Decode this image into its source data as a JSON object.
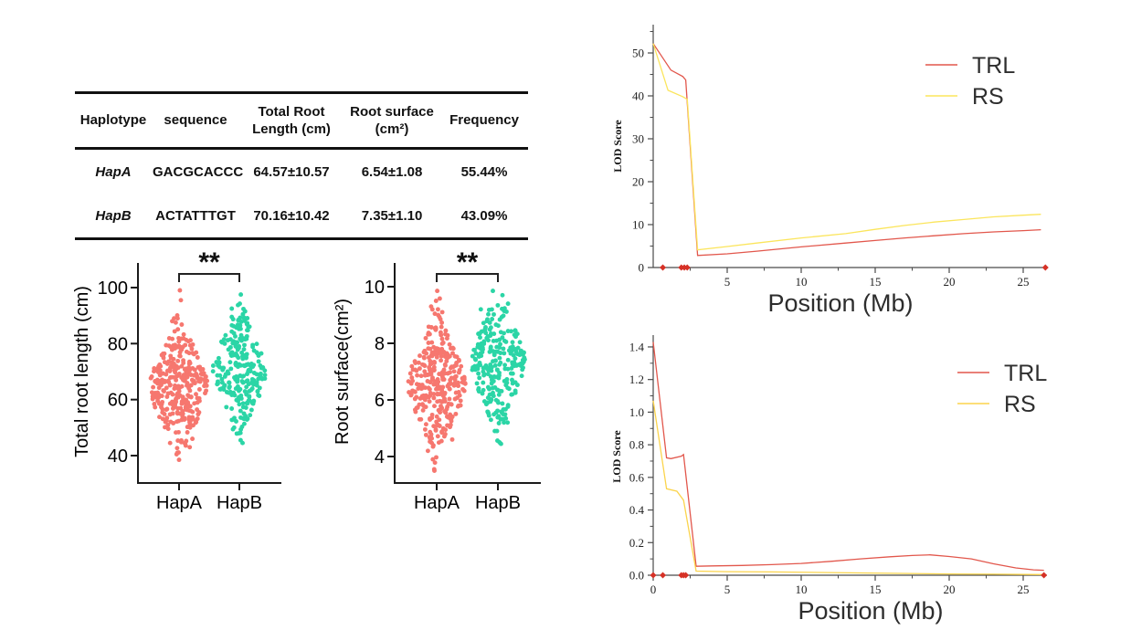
{
  "table": {
    "headers": [
      "Haplotype",
      "sequence",
      "Total Root Length (cm)",
      "Root surface (cm²)",
      "Frequency"
    ],
    "rows": [
      {
        "haplotype": "HapA",
        "sequence": "GACGCACCC",
        "trl": "64.57±10.57",
        "rs": "6.54±1.08",
        "freq": "55.44%"
      },
      {
        "haplotype": "HapB",
        "sequence": "ACTATTTGT",
        "trl": "70.16±10.42",
        "rs": "7.35±1.10",
        "freq": "43.09%"
      }
    ]
  },
  "chart_data": [
    {
      "type": "scatter",
      "subtype": "beeswarm",
      "name": "total-root-length-beeswarm",
      "ylabel": "Total root length (cm)",
      "categories": [
        "HapA",
        "HapB"
      ],
      "yticks": [
        40,
        60,
        80,
        100
      ],
      "ylim": [
        33,
        108
      ],
      "significance": "**",
      "series": [
        {
          "name": "HapA",
          "color": "#F6776F",
          "mean": 64.57,
          "sd": 10.57,
          "n": 320,
          "min": 38,
          "max": 99,
          "extremes": [
            99,
            95.5,
            88,
            87.5,
            38.5,
            40.5,
            43,
            44.5,
            46
          ]
        },
        {
          "name": "HapB",
          "color": "#2BD5A6",
          "mean": 70.16,
          "sd": 10.42,
          "n": 245,
          "min": 44,
          "max": 98,
          "extremes": [
            97.5,
            92.5,
            91.5,
            90.5,
            44.5,
            45.5,
            48,
            50
          ]
        }
      ]
    },
    {
      "type": "scatter",
      "subtype": "beeswarm",
      "name": "root-surface-beeswarm",
      "ylabel": "Root surface(cm²)",
      "categories": [
        "HapA",
        "HapB"
      ],
      "yticks": [
        4,
        6,
        8,
        10
      ],
      "ylim": [
        3.2,
        10.8
      ],
      "significance": "**",
      "series": [
        {
          "name": "HapA",
          "color": "#F6776F",
          "mean": 6.54,
          "sd": 1.08,
          "n": 320,
          "min": 3.5,
          "max": 9.9,
          "extremes": [
            9.85,
            9.5,
            9.3,
            9.1,
            3.5,
            4.2,
            4.35,
            4.6
          ]
        },
        {
          "name": "HapB",
          "color": "#2BD5A6",
          "mean": 7.35,
          "sd": 1.1,
          "n": 245,
          "min": 4.4,
          "max": 9.9,
          "extremes": [
            9.85,
            9.7,
            9.4,
            9.2,
            4.45,
            4.5,
            4.9,
            5.2
          ]
        }
      ]
    },
    {
      "type": "line",
      "name": "lod-chromosome-top",
      "ylabel": "LOD Score",
      "xlabel": "Position (Mb)",
      "xticks": [
        5,
        10,
        15,
        20,
        25
      ],
      "yticks": [
        0,
        10,
        20,
        30,
        40,
        50
      ],
      "ytick_labels": [
        "0",
        "10",
        "20",
        "30",
        "40",
        "50"
      ],
      "xlim": [
        0,
        26.6
      ],
      "ylim": [
        0,
        56
      ],
      "legend": [
        "TRL",
        "RS"
      ],
      "series": [
        {
          "name": "TRL",
          "color": "#E2574C",
          "points": [
            [
              0,
              52.2
            ],
            [
              1.2,
              46
            ],
            [
              2.0,
              44.5
            ],
            [
              2.2,
              43.7
            ],
            [
              3.0,
              2.8
            ],
            [
              5,
              3.2
            ],
            [
              7,
              3.8
            ],
            [
              10,
              4.8
            ],
            [
              13,
              5.7
            ],
            [
              15,
              6.3
            ],
            [
              17,
              6.9
            ],
            [
              19,
              7.4
            ],
            [
              21,
              7.9
            ],
            [
              23,
              8.3
            ],
            [
              25,
              8.6
            ],
            [
              26.2,
              8.8
            ]
          ]
        },
        {
          "name": "RS",
          "color": "#FBE55C",
          "points": [
            [
              0,
              52.2
            ],
            [
              1.0,
              41.3
            ],
            [
              2.0,
              39.8
            ],
            [
              2.3,
              39.2
            ],
            [
              3.0,
              4.1
            ],
            [
              5,
              4.9
            ],
            [
              7,
              5.7
            ],
            [
              10,
              6.9
            ],
            [
              13,
              7.9
            ],
            [
              15,
              8.9
            ],
            [
              17,
              9.8
            ],
            [
              19,
              10.6
            ],
            [
              21,
              11.2
            ],
            [
              23,
              11.8
            ],
            [
              25,
              12.2
            ],
            [
              26.2,
              12.4
            ]
          ]
        }
      ],
      "markers": {
        "color": "#D63126",
        "x": [
          0.65,
          1.9,
          2.1,
          2.3,
          26.5
        ]
      }
    },
    {
      "type": "line",
      "name": "lod-chromosome-bottom",
      "ylabel": "LOD Score",
      "xlabel": "Position (Mb)",
      "xticks": [
        0,
        5,
        10,
        15,
        20,
        25
      ],
      "yticks": [
        0,
        0.2,
        0.4,
        0.6,
        0.8,
        1.0,
        1.2,
        1.4
      ],
      "ytick_labels": [
        "0.0",
        "0.2",
        "0.4",
        "0.6",
        "0.8",
        "1.0",
        "1.2",
        "1.4"
      ],
      "xlim": [
        0,
        26.6
      ],
      "ylim": [
        0,
        1.47
      ],
      "legend": [
        "TRL",
        "RS"
      ],
      "series": [
        {
          "name": "TRL",
          "color": "#E2574C",
          "points": [
            [
              0,
              1.43
            ],
            [
              0.9,
              0.72
            ],
            [
              1.2,
              0.715
            ],
            [
              1.9,
              0.73
            ],
            [
              2.05,
              0.74
            ],
            [
              2.9,
              0.055
            ],
            [
              4,
              0.057
            ],
            [
              6,
              0.06
            ],
            [
              8,
              0.065
            ],
            [
              10,
              0.072
            ],
            [
              12,
              0.085
            ],
            [
              14,
              0.1
            ],
            [
              16,
              0.113
            ],
            [
              17.5,
              0.121
            ],
            [
              18.7,
              0.125
            ],
            [
              20,
              0.115
            ],
            [
              21.5,
              0.1
            ],
            [
              23,
              0.07
            ],
            [
              24.5,
              0.045
            ],
            [
              25.7,
              0.033
            ],
            [
              26.4,
              0.03
            ]
          ]
        },
        {
          "name": "RS",
          "color": "#FBD44C",
          "points": [
            [
              0,
              1.07
            ],
            [
              0.9,
              0.53
            ],
            [
              1.6,
              0.515
            ],
            [
              2.05,
              0.46
            ],
            [
              2.9,
              0.025
            ],
            [
              5,
              0.022
            ],
            [
              8,
              0.02
            ],
            [
              12,
              0.016
            ],
            [
              16,
              0.012
            ],
            [
              20,
              0.008
            ],
            [
              23,
              0.006
            ],
            [
              26.4,
              0.004
            ]
          ]
        }
      ],
      "markers": {
        "color": "#D63126",
        "x": [
          0,
          0.65,
          1.9,
          2.05,
          2.2,
          26.4
        ]
      }
    }
  ]
}
